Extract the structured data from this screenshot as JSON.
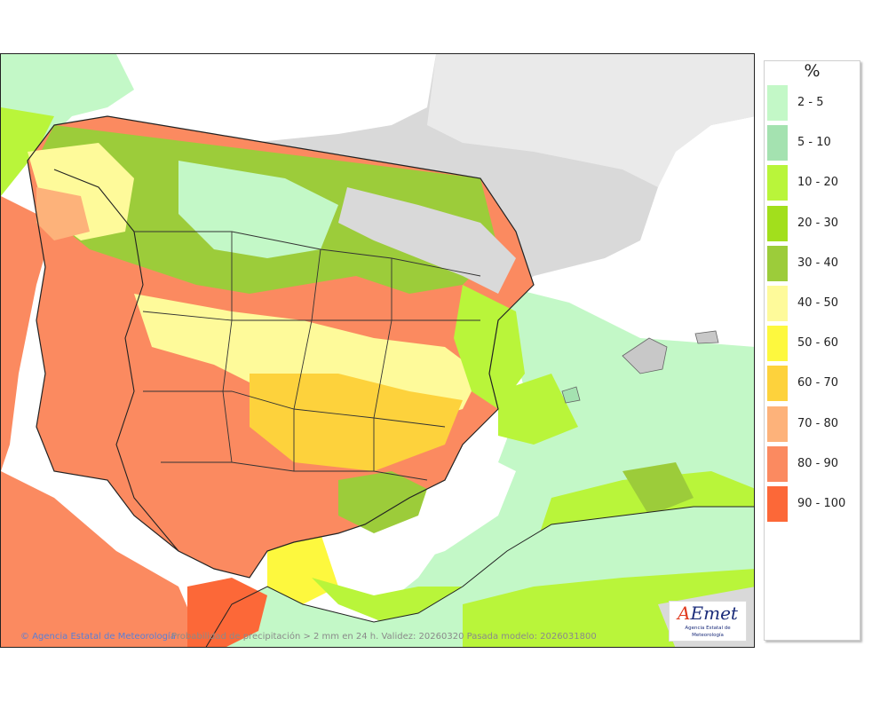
{
  "map": {
    "credit": "Agencia Estatal de Meteorología",
    "caption": "Probabilidad de precipitación > 2 mm en 24 h. Validez: 20260320 Pasada modelo: 2026031800",
    "logo_text": "AEmet",
    "logo_org": "Agencia Estatal de Meteorología"
  },
  "legend": {
    "unit": "%",
    "classes": [
      {
        "label": "2 - 5",
        "color": "#c3f8c7"
      },
      {
        "label": "5 - 10",
        "color": "#a4e2b0"
      },
      {
        "label": "10 - 20",
        "color": "#b9f53a"
      },
      {
        "label": "20 - 30",
        "color": "#a2df1c"
      },
      {
        "label": "30 - 40",
        "color": "#9ccc3a"
      },
      {
        "label": "40 - 50",
        "color": "#fefa9a"
      },
      {
        "label": "50 - 60",
        "color": "#fdf83e"
      },
      {
        "label": "60 - 70",
        "color": "#fdd23c"
      },
      {
        "label": "70 - 80",
        "color": "#fdb27a"
      },
      {
        "label": "80 - 90",
        "color": "#fb8a60"
      },
      {
        "label": "90 - 100",
        "color": "#fc6838"
      }
    ]
  }
}
